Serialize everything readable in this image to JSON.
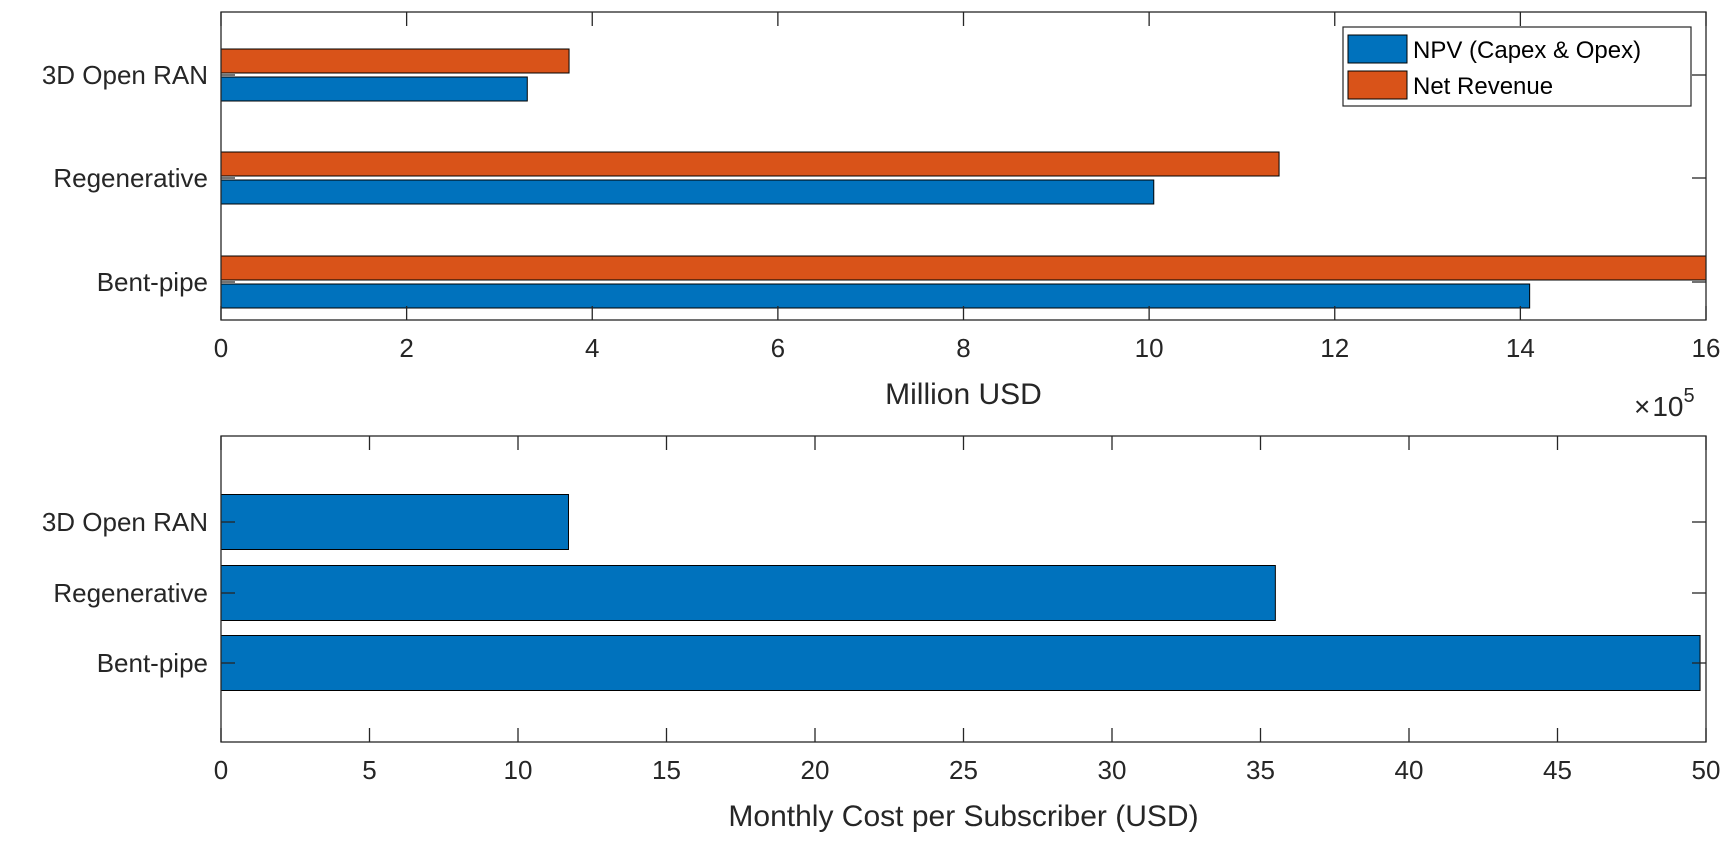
{
  "chart_data": [
    {
      "type": "bar",
      "orientation": "horizontal",
      "categories": [
        "Bent-pipe",
        "Regenerative",
        "3D Open RAN"
      ],
      "series": [
        {
          "name": "NPV (Capex & Opex)",
          "color": "#0072BD",
          "values": [
            1410000,
            1005000,
            330000
          ]
        },
        {
          "name": "Net Revenue",
          "color": "#D95319",
          "values": [
            1600000,
            1140000,
            375000
          ]
        }
      ],
      "xlabel": "Million USD",
      "xlim": [
        0,
        1600000
      ],
      "xticks": [
        0,
        200000,
        400000,
        600000,
        800000,
        1000000,
        1200000,
        1400000,
        1600000
      ],
      "xtick_labels": [
        "0",
        "2",
        "4",
        "6",
        "8",
        "10",
        "12",
        "14",
        "16"
      ],
      "exponent_base": "10",
      "exponent_power": "5",
      "legend_position": "top-right",
      "grid": false
    },
    {
      "type": "bar",
      "orientation": "horizontal",
      "categories": [
        "Bent-pipe",
        "Regenerative",
        "3D Open RAN"
      ],
      "series": [
        {
          "name": "Monthly Cost per Subscriber",
          "color": "#0072BD",
          "values": [
            49.8,
            35.5,
            11.7
          ]
        }
      ],
      "xlabel": "Monthly Cost per Subscriber (USD)",
      "xlim": [
        0,
        50
      ],
      "xticks": [
        0,
        5,
        10,
        15,
        20,
        25,
        30,
        35,
        40,
        45,
        50
      ],
      "xtick_labels": [
        "0",
        "5",
        "10",
        "15",
        "20",
        "25",
        "30",
        "35",
        "40",
        "45",
        "50"
      ],
      "grid": false
    }
  ]
}
